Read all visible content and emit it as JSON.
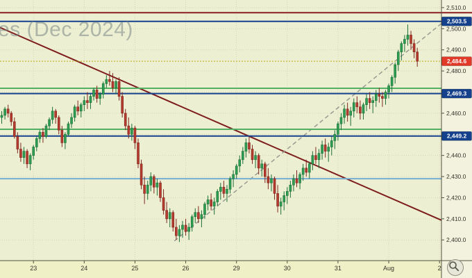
{
  "watermark": "es (Dec 2024)",
  "colors": {
    "bg_chart": "#edefd2",
    "bg_axis_right": "#f2f2df",
    "bg_axis_bottom": "#eff0c6",
    "grid": "#d4d7b2",
    "axis_border": "#50503f",
    "axis_text": "#33332a",
    "candle_up": "#2e9e52",
    "candle_up_stroke": "#1d6f38",
    "candle_down": "#b53b2e",
    "candle_down_stroke": "#7e271e",
    "badge_text": "#ffffff"
  },
  "y_axis": {
    "ticks": [
      {
        "value": 2510,
        "label": "2,510.0"
      },
      {
        "value": 2500,
        "label": "2,500.0"
      },
      {
        "value": 2490,
        "label": "2,490.0"
      },
      {
        "value": 2480,
        "label": "2,480.0"
      },
      {
        "value": 2470,
        "label": "2,470.0"
      },
      {
        "value": 2460,
        "label": "2,460.0"
      },
      {
        "value": 2450,
        "label": "2,450.0"
      },
      {
        "value": 2440,
        "label": "2,440.0"
      },
      {
        "value": 2430,
        "label": "2,430.0"
      },
      {
        "value": 2420,
        "label": "2,420.0"
      },
      {
        "value": 2410,
        "label": "2,410.0"
      },
      {
        "value": 2400,
        "label": "2,400.0"
      }
    ]
  },
  "x_axis": {
    "labels": [
      {
        "text": "23",
        "i": 10
      },
      {
        "text": "24",
        "i": 26
      },
      {
        "text": "25",
        "i": 42
      },
      {
        "text": "26",
        "i": 58
      },
      {
        "text": "29",
        "i": 74
      },
      {
        "text": "30",
        "i": 90
      },
      {
        "text": "31",
        "i": 106
      },
      {
        "text": "Aug",
        "i": 122
      },
      {
        "text": "2",
        "i": 138
      }
    ]
  },
  "zoom_button": {
    "icon": "magnifier-icon"
  },
  "chart_data": {
    "type": "candlestick",
    "title_watermark": "es (Dec 2024)",
    "current_price": 2484.6,
    "current_price_label": "2,484.6",
    "price_range": [
      2390.2,
      2513.6
    ],
    "x_categories": [
      "23",
      "24",
      "25",
      "26",
      "29",
      "30",
      "31",
      "Aug"
    ],
    "legend": "none",
    "grid": true,
    "levels": [
      {
        "name": "resistance-line-top",
        "price": 2507.6,
        "color": "#8b1f1f",
        "width": 2,
        "dash": null,
        "full_width": true,
        "badge": null
      },
      {
        "name": "level-2503-5",
        "price": 2503.5,
        "color": "#15418c",
        "width": 2,
        "dash": null,
        "full_width": false,
        "badge": {
          "label": "2,503.5",
          "bg": "#15418c"
        }
      },
      {
        "name": "current-price-line",
        "price": 2484.6,
        "color": "#b9a80c",
        "width": 1,
        "dash": "2 2",
        "full_width": false,
        "badge": {
          "label": "2,484.6",
          "bg": "#e13a28"
        }
      },
      {
        "name": "green-line-upper",
        "price": 2471.8,
        "color": "#53b063",
        "width": 2,
        "dash": null,
        "full_width": false,
        "badge": null
      },
      {
        "name": "level-2469-3",
        "price": 2469.3,
        "color": "#15418c",
        "width": 2,
        "dash": null,
        "full_width": false,
        "badge": {
          "label": "2,469.3",
          "bg": "#15418c"
        }
      },
      {
        "name": "green-line-lower",
        "price": 2452.4,
        "color": "#53b063",
        "width": 2,
        "dash": null,
        "full_width": false,
        "badge": null
      },
      {
        "name": "level-2449-2",
        "price": 2449.2,
        "color": "#15418c",
        "width": 2,
        "dash": null,
        "full_width": false,
        "badge": {
          "label": "2,449.2",
          "bg": "#15418c"
        }
      },
      {
        "name": "support-line-light-blue",
        "price": 2429.0,
        "color": "#74aed2",
        "width": 2,
        "dash": null,
        "full_width": false,
        "badge": null
      }
    ],
    "trendlines": [
      {
        "name": "descending-trendline",
        "color": "#7e1d1d",
        "width": 2,
        "dash": null,
        "x1f": -0.01,
        "p1": 2501.5,
        "x2f": 1.02,
        "p2": 2407.5
      },
      {
        "name": "ascending-trendline",
        "color": "#9a9a92",
        "width": 1.5,
        "dash": "6 4",
        "x1f": 0.395,
        "p1": 2399.5,
        "x2f": 1.0,
        "p2": 2502.5
      }
    ],
    "candles": [
      [
        2458,
        2461,
        2455,
        2459
      ],
      [
        2459,
        2463,
        2457,
        2462
      ],
      [
        2462,
        2464,
        2458,
        2460
      ],
      [
        2460,
        2461,
        2454,
        2456
      ],
      [
        2456,
        2458,
        2448,
        2449
      ],
      [
        2449,
        2451,
        2441,
        2443
      ],
      [
        2443,
        2446,
        2437,
        2439
      ],
      [
        2439,
        2444,
        2436,
        2442
      ],
      [
        2442,
        2443,
        2434,
        2436
      ],
      [
        2436,
        2441,
        2433,
        2440
      ],
      [
        2440,
        2445,
        2438,
        2444
      ],
      [
        2444,
        2449,
        2442,
        2448
      ],
      [
        2448,
        2452,
        2446,
        2451
      ],
      [
        2451,
        2453,
        2446,
        2449
      ],
      [
        2449,
        2455,
        2448,
        2454
      ],
      [
        2454,
        2458,
        2452,
        2457
      ],
      [
        2457,
        2463,
        2455,
        2461
      ],
      [
        2461,
        2462,
        2455,
        2458
      ],
      [
        2458,
        2459,
        2450,
        2452
      ],
      [
        2452,
        2454,
        2444,
        2446
      ],
      [
        2446,
        2451,
        2443,
        2450
      ],
      [
        2450,
        2456,
        2449,
        2455
      ],
      [
        2455,
        2460,
        2453,
        2458
      ],
      [
        2458,
        2464,
        2456,
        2463
      ],
      [
        2463,
        2466,
        2459,
        2461
      ],
      [
        2461,
        2465,
        2458,
        2464
      ],
      [
        2464,
        2468,
        2461,
        2466
      ],
      [
        2466,
        2470,
        2462,
        2465
      ],
      [
        2465,
        2469,
        2462,
        2468
      ],
      [
        2468,
        2472,
        2466,
        2471
      ],
      [
        2471,
        2473,
        2465,
        2467
      ],
      [
        2467,
        2470,
        2464,
        2469
      ],
      [
        2469,
        2475,
        2467,
        2474
      ],
      [
        2474,
        2478,
        2472,
        2476
      ],
      [
        2476,
        2480,
        2473,
        2475
      ],
      [
        2475,
        2479,
        2470,
        2472
      ],
      [
        2472,
        2476,
        2469,
        2475
      ],
      [
        2475,
        2477,
        2466,
        2468
      ],
      [
        2468,
        2470,
        2458,
        2460
      ],
      [
        2460,
        2462,
        2452,
        2454
      ],
      [
        2454,
        2458,
        2448,
        2450
      ],
      [
        2450,
        2455,
        2447,
        2453
      ],
      [
        2453,
        2454,
        2443,
        2446
      ],
      [
        2446,
        2448,
        2434,
        2436
      ],
      [
        2436,
        2438,
        2424,
        2426
      ],
      [
        2426,
        2430,
        2417,
        2422
      ],
      [
        2422,
        2428,
        2419,
        2426
      ],
      [
        2426,
        2432,
        2423,
        2430
      ],
      [
        2430,
        2431,
        2422,
        2425
      ],
      [
        2425,
        2429,
        2421,
        2427
      ],
      [
        2427,
        2428,
        2418,
        2420
      ],
      [
        2420,
        2424,
        2412,
        2414
      ],
      [
        2414,
        2418,
        2408,
        2410
      ],
      [
        2410,
        2415,
        2406,
        2413
      ],
      [
        2413,
        2414,
        2404,
        2406
      ],
      [
        2406,
        2410,
        2400,
        2402
      ],
      [
        2402,
        2407,
        2399,
        2405
      ],
      [
        2405,
        2409,
        2401,
        2407
      ],
      [
        2407,
        2410,
        2402,
        2404
      ],
      [
        2404,
        2408,
        2400,
        2406
      ],
      [
        2406,
        2412,
        2404,
        2411
      ],
      [
        2411,
        2415,
        2408,
        2413
      ],
      [
        2413,
        2416,
        2408,
        2410
      ],
      [
        2410,
        2414,
        2406,
        2412
      ],
      [
        2412,
        2418,
        2410,
        2417
      ],
      [
        2417,
        2421,
        2414,
        2419
      ],
      [
        2419,
        2422,
        2414,
        2416
      ],
      [
        2416,
        2420,
        2412,
        2418
      ],
      [
        2418,
        2424,
        2416,
        2423
      ],
      [
        2423,
        2427,
        2419,
        2425
      ],
      [
        2425,
        2428,
        2420,
        2422
      ],
      [
        2422,
        2426,
        2418,
        2424
      ],
      [
        2424,
        2430,
        2422,
        2429
      ],
      [
        2429,
        2433,
        2425,
        2431
      ],
      [
        2431,
        2436,
        2429,
        2435
      ],
      [
        2435,
        2440,
        2432,
        2438
      ],
      [
        2438,
        2444,
        2436,
        2442
      ],
      [
        2442,
        2448,
        2439,
        2446
      ],
      [
        2446,
        2449,
        2441,
        2443
      ],
      [
        2443,
        2445,
        2436,
        2438
      ],
      [
        2438,
        2442,
        2434,
        2440
      ],
      [
        2440,
        2441,
        2431,
        2434
      ],
      [
        2434,
        2438,
        2430,
        2436
      ],
      [
        2436,
        2437,
        2427,
        2430
      ],
      [
        2430,
        2434,
        2424,
        2427
      ],
      [
        2427,
        2431,
        2423,
        2429
      ],
      [
        2429,
        2430,
        2419,
        2422
      ],
      [
        2422,
        2426,
        2413,
        2416
      ],
      [
        2416,
        2420,
        2412,
        2418
      ],
      [
        2418,
        2423,
        2414,
        2421
      ],
      [
        2421,
        2425,
        2417,
        2423
      ],
      [
        2423,
        2428,
        2420,
        2426
      ],
      [
        2426,
        2431,
        2423,
        2429
      ],
      [
        2429,
        2433,
        2425,
        2427
      ],
      [
        2427,
        2432,
        2424,
        2431
      ],
      [
        2431,
        2436,
        2428,
        2434
      ],
      [
        2434,
        2438,
        2430,
        2432
      ],
      [
        2432,
        2437,
        2429,
        2436
      ],
      [
        2436,
        2442,
        2433,
        2440
      ],
      [
        2440,
        2444,
        2436,
        2438
      ],
      [
        2438,
        2443,
        2434,
        2441
      ],
      [
        2441,
        2447,
        2438,
        2445
      ],
      [
        2445,
        2448,
        2439,
        2442
      ],
      [
        2442,
        2446,
        2437,
        2444
      ],
      [
        2444,
        2449,
        2440,
        2447
      ],
      [
        2447,
        2452,
        2443,
        2450
      ],
      [
        2450,
        2456,
        2447,
        2455
      ],
      [
        2455,
        2460,
        2452,
        2458
      ],
      [
        2458,
        2464,
        2455,
        2462
      ],
      [
        2462,
        2465,
        2456,
        2459
      ],
      [
        2459,
        2463,
        2454,
        2461
      ],
      [
        2461,
        2467,
        2458,
        2465
      ],
      [
        2465,
        2468,
        2460,
        2463
      ],
      [
        2463,
        2466,
        2457,
        2460
      ],
      [
        2460,
        2465,
        2457,
        2464
      ],
      [
        2464,
        2469,
        2461,
        2467
      ],
      [
        2467,
        2470,
        2462,
        2465
      ],
      [
        2465,
        2468,
        2460,
        2466
      ],
      [
        2466,
        2471,
        2463,
        2469
      ],
      [
        2469,
        2472,
        2465,
        2468
      ],
      [
        2468,
        2470,
        2463,
        2467
      ],
      [
        2467,
        2471,
        2464,
        2470
      ],
      [
        2470,
        2474,
        2467,
        2473
      ],
      [
        2473,
        2478,
        2470,
        2477
      ],
      [
        2477,
        2484,
        2474,
        2483
      ],
      [
        2483,
        2490,
        2480,
        2489
      ],
      [
        2489,
        2494,
        2485,
        2493
      ],
      [
        2493,
        2497,
        2489,
        2495
      ],
      [
        2495,
        2502,
        2492,
        2497
      ],
      [
        2497,
        2499,
        2490,
        2493
      ],
      [
        2493,
        2495,
        2486,
        2489
      ],
      [
        2489,
        2491,
        2482,
        2484.6
      ]
    ]
  }
}
